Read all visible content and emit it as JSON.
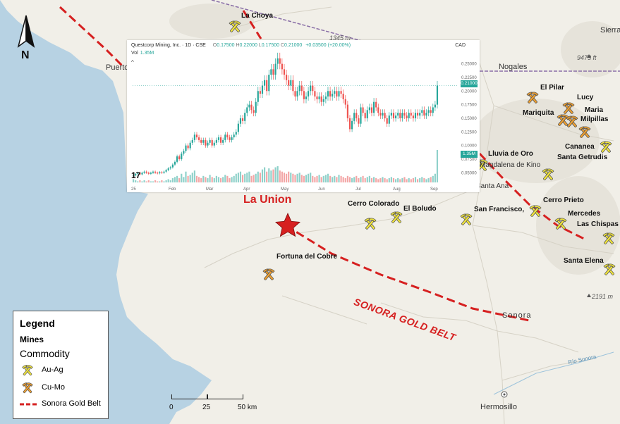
{
  "map": {
    "feature_label": "La Union",
    "belt_label": "SONORA GOLD BELT",
    "north_label": "N",
    "colors": {
      "ocean": "#b7d2e3",
      "land": "#f1efe8",
      "belt": "#d62020",
      "star": "#d62020",
      "au_ag": "#f5e83a",
      "cu_mo": "#f2a12e"
    },
    "places": {
      "puerto": "Puerto",
      "nogales": "Nogales",
      "sierra": "Sierra",
      "magdalena": "Magdalena de Kino",
      "santa_ana": "Santa Ana",
      "sonora": "Sonora",
      "hermosillo": "Hermosillo",
      "rio_sonora": "Río Sonora"
    },
    "elevations": {
      "e1": "1345 m",
      "e2": "9473 ft",
      "e3": "2191 m"
    },
    "mines": [
      {
        "name": "La Choya",
        "type": "Au-Ag"
      },
      {
        "name": "El Pilar",
        "type": "Cu-Mo"
      },
      {
        "name": "Lucy",
        "type": "Cu-Mo"
      },
      {
        "name": "Mariquita",
        "type": "Cu-Mo"
      },
      {
        "name": "Maria",
        "type": "Cu-Mo"
      },
      {
        "name": "Milpillas",
        "type": "Cu-Mo"
      },
      {
        "name": "Cananea",
        "type": "Au-Ag"
      },
      {
        "name": "Lluvia de Oro",
        "type": "Au-Ag"
      },
      {
        "name": "Santa Getrudis",
        "type": "Au-Ag"
      },
      {
        "name": "Cerro Prieto",
        "type": "Au-Ag"
      },
      {
        "name": "Mercedes",
        "type": "Au-Ag"
      },
      {
        "name": "Las Chispas",
        "type": "Au-Ag"
      },
      {
        "name": "Santa Elena",
        "type": "Au-Ag"
      },
      {
        "name": "San Francisco,",
        "type": "Au-Ag"
      },
      {
        "name": "Cerro Colorado",
        "type": "Au-Ag"
      },
      {
        "name": "El Boludo",
        "type": "Au-Ag"
      },
      {
        "name": "Fortuna del Cobre",
        "type": "Cu-Mo"
      }
    ]
  },
  "legend": {
    "title": "Legend",
    "layer": "Mines",
    "field": "Commodity",
    "items": [
      {
        "label": "Au-Ag"
      },
      {
        "label": "Cu-Mo"
      },
      {
        "label": "Sonora Gold Belt"
      }
    ]
  },
  "scale_bar": {
    "labels": [
      "0",
      "25",
      "50 km"
    ]
  },
  "stock_chart": {
    "symbol_line": "Questcorp Mining, Inc. · 1D · CSE",
    "ohlc": {
      "o": "0.17500",
      "h": "0.22000",
      "l": "0.17500",
      "c": "0.21000"
    },
    "change": "+0.03500 (+20.00%)",
    "volume_label": "Vol",
    "volume_value": "1.35M",
    "currency": "CAD",
    "last_price": "0.21000",
    "last_volume": "1.35M",
    "logo": "17"
  },
  "chart_data": {
    "type": "candlestick",
    "title": "Questcorp Mining, Inc. · 1D · CSE",
    "x_labels": [
      "25",
      "Feb",
      "Mar",
      "Apr",
      "May",
      "Jun",
      "Jul",
      "Aug",
      "Sep"
    ],
    "y_ticks": [
      "0.25000",
      "0.22500",
      "0.20000",
      "0.17500",
      "0.15000",
      "0.12500",
      "0.10000",
      "0.07500",
      "0.05000"
    ],
    "ylim": [
      0.04,
      0.265
    ],
    "close": [
      0.045,
      0.048,
      0.05,
      0.047,
      0.05,
      0.052,
      0.05,
      0.048,
      0.05,
      0.052,
      0.05,
      0.049,
      0.051,
      0.05,
      0.052,
      0.055,
      0.058,
      0.06,
      0.065,
      0.07,
      0.08,
      0.075,
      0.085,
      0.09,
      0.1,
      0.095,
      0.105,
      0.11,
      0.12,
      0.115,
      0.11,
      0.105,
      0.11,
      0.1,
      0.105,
      0.11,
      0.1,
      0.105,
      0.11,
      0.115,
      0.105,
      0.11,
      0.12,
      0.115,
      0.11,
      0.115,
      0.12,
      0.125,
      0.14,
      0.15,
      0.145,
      0.16,
      0.17,
      0.175,
      0.165,
      0.16,
      0.18,
      0.2,
      0.195,
      0.21,
      0.22,
      0.2,
      0.23,
      0.24,
      0.23,
      0.25,
      0.26,
      0.25,
      0.24,
      0.23,
      0.22,
      0.21,
      0.22,
      0.2,
      0.19,
      0.2,
      0.21,
      0.2,
      0.185,
      0.19,
      0.2,
      0.21,
      0.2,
      0.19,
      0.185,
      0.19,
      0.18,
      0.185,
      0.19,
      0.2,
      0.19,
      0.195,
      0.2,
      0.19,
      0.2,
      0.195,
      0.185,
      0.175,
      0.15,
      0.13,
      0.145,
      0.16,
      0.15,
      0.14,
      0.17,
      0.16,
      0.15,
      0.165,
      0.17,
      0.16,
      0.18,
      0.17,
      0.16,
      0.155,
      0.16,
      0.15,
      0.14,
      0.155,
      0.16,
      0.15,
      0.155,
      0.16,
      0.15,
      0.16,
      0.155,
      0.15,
      0.16,
      0.155,
      0.15,
      0.16,
      0.155,
      0.16,
      0.165,
      0.155,
      0.16,
      0.165,
      0.16,
      0.17,
      0.175,
      0.21
    ],
    "volume": [
      3,
      2,
      1,
      2,
      1,
      2,
      1,
      2,
      1,
      1,
      2,
      1,
      1,
      2,
      1,
      2,
      3,
      2,
      4,
      5,
      6,
      4,
      8,
      5,
      10,
      6,
      7,
      9,
      11,
      6,
      5,
      4,
      6,
      5,
      4,
      7,
      5,
      4,
      6,
      5,
      4,
      5,
      7,
      6,
      4,
      5,
      6,
      8,
      9,
      10,
      7,
      8,
      9,
      10,
      6,
      7,
      8,
      10,
      9,
      12,
      14,
      10,
      13,
      11,
      12,
      14,
      15,
      11,
      10,
      9,
      8,
      10,
      9,
      8,
      7,
      8,
      9,
      7,
      6,
      7,
      8,
      9,
      6,
      5,
      6,
      7,
      5,
      6,
      7,
      8,
      6,
      5,
      6,
      5,
      7,
      6,
      5,
      4,
      6,
      5,
      4,
      5,
      6,
      4,
      5,
      6,
      4,
      5,
      6,
      4,
      5,
      4,
      3,
      4,
      5,
      4,
      3,
      4,
      5,
      4,
      3,
      4,
      3,
      4,
      5,
      3,
      4,
      3,
      4,
      5,
      3,
      4,
      5,
      4,
      3,
      4,
      5,
      6,
      8,
      30
    ]
  }
}
